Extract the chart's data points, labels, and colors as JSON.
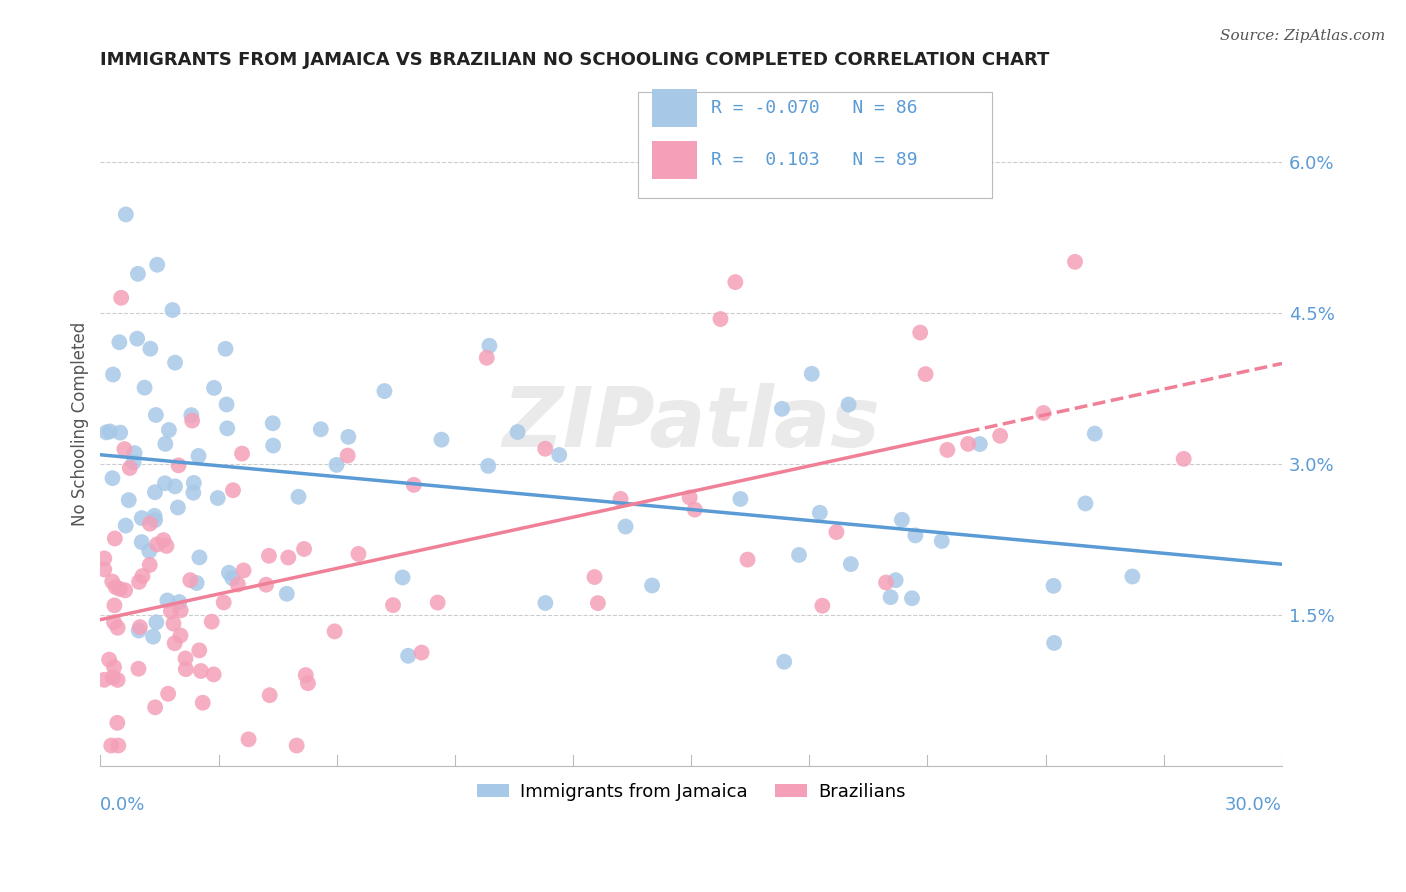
{
  "title": "IMMIGRANTS FROM JAMAICA VS BRAZILIAN NO SCHOOLING COMPLETED CORRELATION CHART",
  "source": "Source: ZipAtlas.com",
  "ylabel": "No Schooling Completed",
  "right_ytick_vals": [
    0.015,
    0.03,
    0.045,
    0.06
  ],
  "right_ytick_labels": [
    "1.5%",
    "3.0%",
    "4.5%",
    "6.0%"
  ],
  "xlim": [
    0.0,
    0.3
  ],
  "ylim": [
    0.0,
    0.068
  ],
  "legend1_R": "-0.070",
  "legend1_N": "86",
  "legend2_R": "0.103",
  "legend2_N": "89",
  "color_jamaica": "#a8c8e8",
  "color_brazil": "#f4a0b8",
  "color_jamaica_line": "#5b9bd5",
  "color_brazil_line": "#f08098",
  "color_axis_text": "#5b9bd5",
  "color_title": "#222222",
  "watermark": "ZIPatlas",
  "background": "#ffffff"
}
